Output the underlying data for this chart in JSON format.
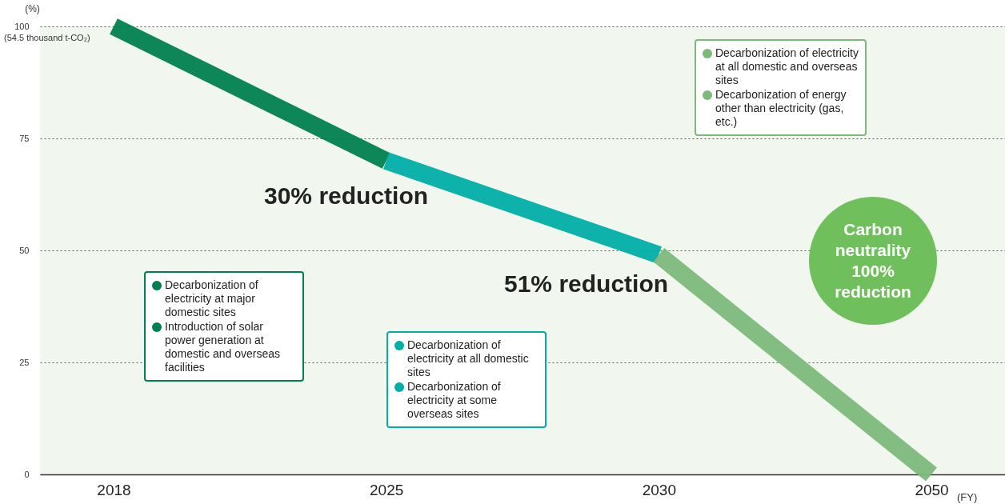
{
  "chart_data": {
    "type": "line",
    "categories": [
      "2018",
      "2025",
      "2030",
      "2050"
    ],
    "xlabel": "(FY)",
    "ylabel": "(%)",
    "ylim": [
      0,
      100
    ],
    "yticks": [
      0,
      25,
      50,
      75,
      100
    ],
    "grid": "y",
    "line_style": "solid",
    "series": [
      {
        "color": "#00804f",
        "values": [
          100,
          70,
          null,
          null
        ]
      },
      {
        "color": "#00afa5",
        "values": [
          null,
          70,
          49,
          null
        ]
      },
      {
        "color": "#7cb97a",
        "values": [
          null,
          null,
          49,
          0
        ]
      }
    ],
    "annotations": [
      "(54.5 thousand t-CO₂)",
      "Decarbonization of electricity at major domestic sites",
      "Introduction of solar power generation at domestic and overseas facilities",
      "Decarbonization of electricity at all domestic sites",
      "Decarbonization of electricity at some overseas sites",
      "Decarbonization of electricity at all domestic and overseas sites",
      "Decarbonization of energy other than electricity (gas, etc.)",
      "30% reduction",
      "51% reduction",
      "Carbon neutrality 100% reduction"
    ]
  }
}
